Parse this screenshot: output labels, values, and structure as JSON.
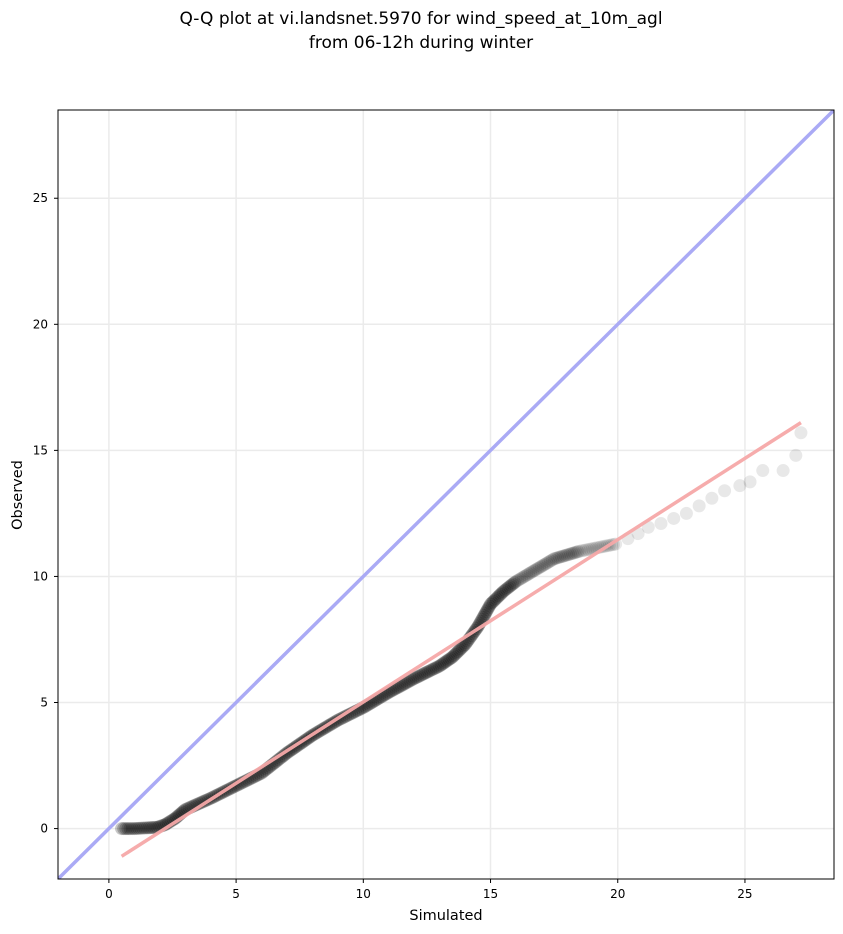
{
  "chart_data": {
    "type": "scatter",
    "title_lines": [
      "Q-Q plot at vi.landsnet.5970 for wind_speed_at_10m_agl",
      "from 06-12h during winter"
    ],
    "xlabel": "Simulated",
    "ylabel": "Observed",
    "xlim": [
      -2.0,
      28.5
    ],
    "ylim": [
      -2.0,
      28.5
    ],
    "xticks": [
      0,
      5,
      10,
      15,
      20,
      25
    ],
    "yticks": [
      0,
      5,
      10,
      15,
      20,
      25
    ],
    "grid": true,
    "colors": {
      "points": "#000000",
      "identity_line": "#aaaaf5",
      "fit_line": "#f5a8a8",
      "grid": "#ebebeb"
    },
    "identity_line": {
      "x": [
        -2.0,
        28.5
      ],
      "y": [
        -2.0,
        28.5
      ]
    },
    "fit_line": {
      "x": [
        0.5,
        27.2
      ],
      "y": [
        -1.1,
        16.1
      ]
    },
    "quantile_curve": {
      "x": [
        0.5,
        1.0,
        1.5,
        1.9,
        2.2,
        2.6,
        3.0,
        4.0,
        5.0,
        6.0,
        7.0,
        8.0,
        9.0,
        10.0,
        11.0,
        12.0,
        12.5,
        13.0,
        13.5,
        14.0,
        14.5,
        15.0,
        15.5,
        16.0,
        16.5,
        17.0,
        17.5,
        18.0,
        18.5,
        19.0,
        19.5,
        20.0
      ],
      "y": [
        0.0,
        0.0,
        0.03,
        0.05,
        0.15,
        0.4,
        0.75,
        1.2,
        1.7,
        2.2,
        3.0,
        3.7,
        4.3,
        4.8,
        5.4,
        5.95,
        6.2,
        6.45,
        6.8,
        7.3,
        8.0,
        8.9,
        9.4,
        9.8,
        10.1,
        10.4,
        10.7,
        10.85,
        11.0,
        11.1,
        11.2,
        11.3
      ]
    },
    "tail_points": {
      "x": [
        20.4,
        20.8,
        21.2,
        21.7,
        22.2,
        22.7,
        23.2,
        23.7,
        24.2,
        24.8,
        25.2,
        25.7,
        26.5,
        27.0,
        27.2
      ],
      "y": [
        11.5,
        11.7,
        11.95,
        12.1,
        12.3,
        12.5,
        12.8,
        13.1,
        13.4,
        13.6,
        13.75,
        14.2,
        14.2,
        14.8,
        15.7
      ]
    }
  }
}
